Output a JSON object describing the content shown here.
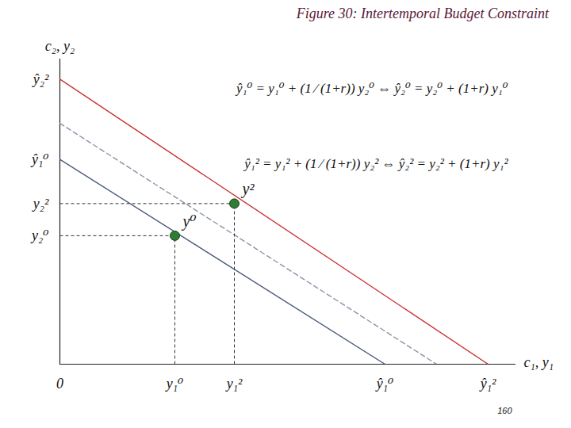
{
  "chart_data": {
    "type": "line",
    "title": "Figure 30: Intertemporal Budget Constraint",
    "xlabel": "c₁, y₁",
    "ylabel": "c₂, y₂",
    "xlim": [
      0,
      11.5
    ],
    "ylim": [
      0,
      7.6
    ],
    "xticks": [
      0,
      {
        "value": 2.9,
        "label": "y₁⁰"
      },
      {
        "value": 4.4,
        "label": "y₁²"
      },
      {
        "value": 8.2,
        "label": "ŷ₁⁰"
      },
      {
        "value": 10.8,
        "label": "ŷ₁²"
      }
    ],
    "yticks": [
      {
        "value": 3.2,
        "label": "y₂⁰"
      },
      {
        "value": 4.0,
        "label": "y₂²"
      },
      {
        "value": 5.1,
        "label": "ŷ₁⁰"
      },
      {
        "value": 7.1,
        "label": "ŷ₂²"
      }
    ],
    "grid": false,
    "series": [
      {
        "x": [
          0,
          8.2
        ],
        "values": [
          5.1,
          0
        ],
        "color": "#4d5b7c",
        "line_style": "solid"
      },
      {
        "x": [
          0,
          9.5
        ],
        "values": [
          6.0,
          0
        ],
        "color": "#8a93a8",
        "line_style": "dashed"
      },
      {
        "x": [
          0,
          10.8
        ],
        "values": [
          7.1,
          0
        ],
        "color": "#cc3333",
        "line_style": "solid"
      }
    ],
    "points": [
      {
        "label": "y⁰",
        "x": 2.9,
        "y": 3.2,
        "color": "#2e7d32",
        "marker": "circle"
      },
      {
        "label": "y²",
        "x": 4.4,
        "y": 4.0,
        "color": "#2e7d32",
        "marker": "circle"
      }
    ],
    "annotations": [
      "ŷ₁⁰ = y₁⁰ + (1 ⁄ (1+r)) y₂⁰ ⇔ ŷ₂⁰ = y₂⁰ + (1+r) y₁⁰",
      "ŷ₁² = y₁² + (1 ⁄ (1+r)) y₂² ⇔ ŷ₂² = y₂² + (1+r) y₁²"
    ],
    "footer": "160"
  }
}
